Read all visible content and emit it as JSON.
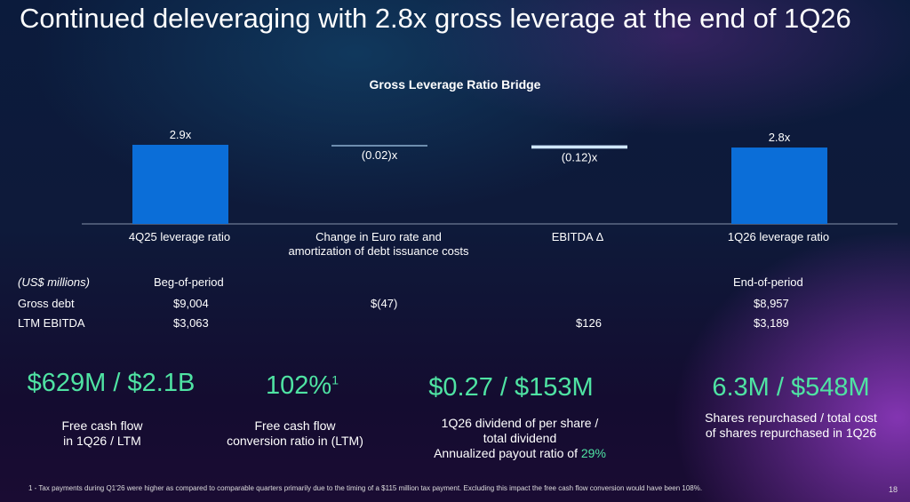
{
  "title": "Continued deleveraging with 2.8x gross leverage at the end of 1Q26",
  "chart_data": {
    "type": "waterfall",
    "title": "Gross Leverage Ratio Bridge",
    "categories": [
      "4Q25 leverage ratio",
      "Change in Euro rate and amortization of debt issuance costs",
      "EBITDA  Δ",
      "1Q26 leverage ratio"
    ],
    "values": [
      2.9,
      -0.02,
      -0.12,
      2.8
    ],
    "data_labels": [
      "2.9x",
      "(0.02)x",
      "(0.12)x",
      "2.8x"
    ],
    "colors": {
      "total": "#0b6ed8",
      "change_1": "#6f8fb0",
      "change_2": "#cfe6ff"
    }
  },
  "table": {
    "unit_label": "(US$ millions)",
    "headers": [
      "Beg-of-period",
      "",
      "",
      "End-of-period"
    ],
    "rows": [
      {
        "label": "Gross debt",
        "values": [
          "$9,004",
          "$(47)",
          "",
          "$8,957"
        ]
      },
      {
        "label": "LTM EBITDA",
        "values": [
          "$3,063",
          "",
          "$126",
          "$3,189"
        ]
      }
    ]
  },
  "kpis": [
    {
      "value": "$629M  / $2.1B",
      "desc1": "Free cash flow",
      "desc2": "in 1Q26 / LTM"
    },
    {
      "value": "102%",
      "sup": "1",
      "desc1": "Free cash flow",
      "desc2": "conversion ratio in (LTM)"
    },
    {
      "value": "$0.27 / $153M",
      "desc1": "1Q26 dividend of per share /",
      "desc2": "total dividend",
      "desc3": "Annualized payout ratio of ",
      "highlight": "29%"
    },
    {
      "value": "6.3M / $548M",
      "desc1": "Shares repurchased / total cost",
      "desc2": "of shares repurchased in 1Q26"
    }
  ],
  "accent": "#4fe3a3",
  "footnote": "1 - Tax payments during Q1'26 were higher as compared to comparable quarters primarily due to the timing of a $115 million tax payment. Excluding this impact the free cash flow conversion would have been 108%.",
  "page_number": "18"
}
